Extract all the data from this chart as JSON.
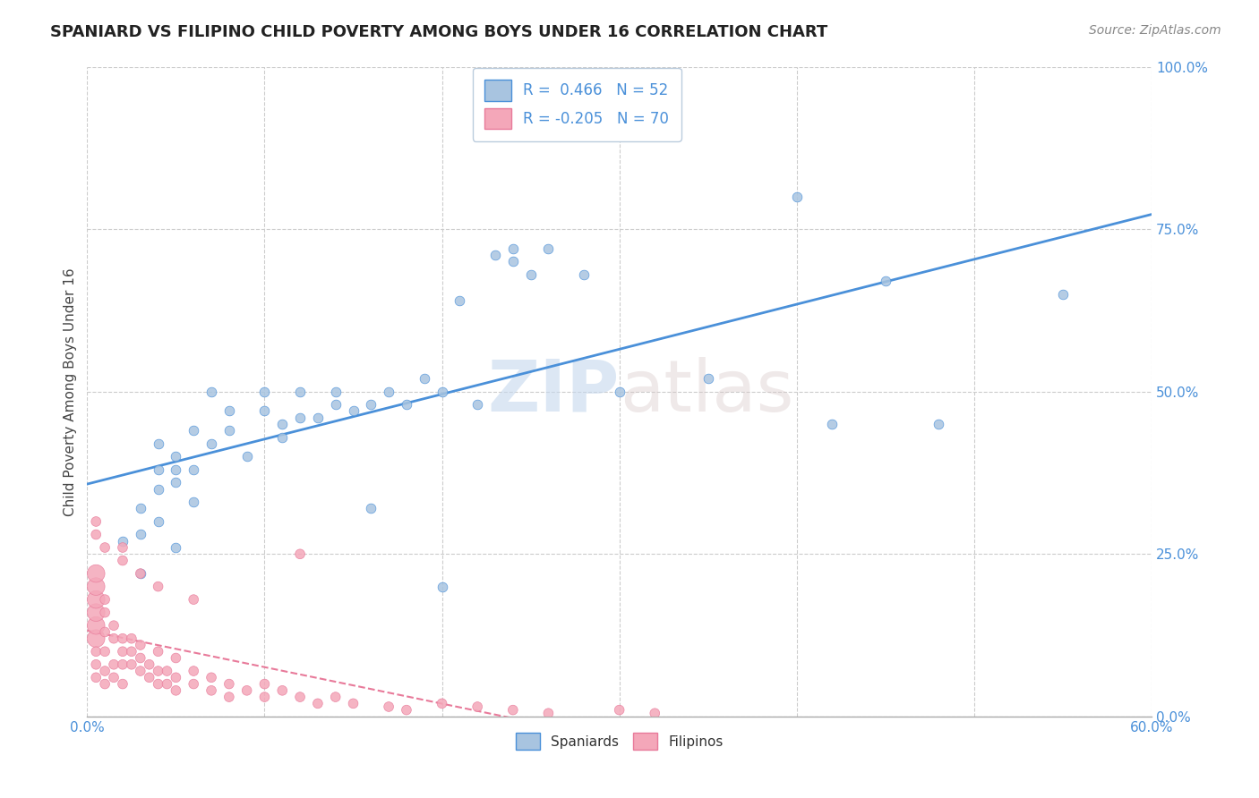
{
  "title": "SPANIARD VS FILIPINO CHILD POVERTY AMONG BOYS UNDER 16 CORRELATION CHART",
  "source": "Source: ZipAtlas.com",
  "ylabel": "Child Poverty Among Boys Under 16",
  "yaxis_labels": [
    "0.0%",
    "25.0%",
    "50.0%",
    "75.0%",
    "100.0%"
  ],
  "yaxis_values": [
    0,
    0.25,
    0.5,
    0.75,
    1.0
  ],
  "xlim": [
    0,
    0.6
  ],
  "ylim": [
    0,
    1.0
  ],
  "legend_r_blue": "0.466",
  "legend_n_blue": "52",
  "legend_r_pink": "-0.205",
  "legend_n_pink": "70",
  "spaniard_color": "#a8c4e0",
  "filipino_color": "#f4a7b9",
  "trend_blue": "#4a90d9",
  "trend_pink": "#e87a9a",
  "watermark_zip": "ZIP",
  "watermark_atlas": "atlas",
  "spaniard_points": [
    [
      0.02,
      0.27
    ],
    [
      0.03,
      0.22
    ],
    [
      0.03,
      0.28
    ],
    [
      0.03,
      0.32
    ],
    [
      0.04,
      0.35
    ],
    [
      0.04,
      0.3
    ],
    [
      0.04,
      0.38
    ],
    [
      0.04,
      0.42
    ],
    [
      0.05,
      0.26
    ],
    [
      0.05,
      0.36
    ],
    [
      0.05,
      0.38
    ],
    [
      0.05,
      0.4
    ],
    [
      0.06,
      0.33
    ],
    [
      0.06,
      0.38
    ],
    [
      0.06,
      0.44
    ],
    [
      0.07,
      0.42
    ],
    [
      0.07,
      0.5
    ],
    [
      0.08,
      0.44
    ],
    [
      0.08,
      0.47
    ],
    [
      0.09,
      0.4
    ],
    [
      0.1,
      0.47
    ],
    [
      0.1,
      0.5
    ],
    [
      0.11,
      0.43
    ],
    [
      0.11,
      0.45
    ],
    [
      0.12,
      0.46
    ],
    [
      0.12,
      0.5
    ],
    [
      0.13,
      0.46
    ],
    [
      0.14,
      0.48
    ],
    [
      0.14,
      0.5
    ],
    [
      0.15,
      0.47
    ],
    [
      0.16,
      0.32
    ],
    [
      0.16,
      0.48
    ],
    [
      0.17,
      0.5
    ],
    [
      0.18,
      0.48
    ],
    [
      0.19,
      0.52
    ],
    [
      0.2,
      0.2
    ],
    [
      0.2,
      0.5
    ],
    [
      0.21,
      0.64
    ],
    [
      0.22,
      0.48
    ],
    [
      0.23,
      0.71
    ],
    [
      0.24,
      0.7
    ],
    [
      0.24,
      0.72
    ],
    [
      0.25,
      0.68
    ],
    [
      0.26,
      0.72
    ],
    [
      0.28,
      0.68
    ],
    [
      0.3,
      0.5
    ],
    [
      0.35,
      0.52
    ],
    [
      0.4,
      0.8
    ],
    [
      0.42,
      0.45
    ],
    [
      0.45,
      0.67
    ],
    [
      0.48,
      0.45
    ],
    [
      0.55,
      0.65
    ]
  ],
  "filipino_points": [
    [
      0.005,
      0.12
    ],
    [
      0.005,
      0.14
    ],
    [
      0.005,
      0.16
    ],
    [
      0.005,
      0.18
    ],
    [
      0.005,
      0.2
    ],
    [
      0.005,
      0.22
    ],
    [
      0.005,
      0.06
    ],
    [
      0.005,
      0.08
    ],
    [
      0.005,
      0.1
    ],
    [
      0.01,
      0.13
    ],
    [
      0.01,
      0.16
    ],
    [
      0.01,
      0.18
    ],
    [
      0.01,
      0.1
    ],
    [
      0.01,
      0.07
    ],
    [
      0.01,
      0.05
    ],
    [
      0.015,
      0.12
    ],
    [
      0.015,
      0.14
    ],
    [
      0.015,
      0.08
    ],
    [
      0.015,
      0.06
    ],
    [
      0.02,
      0.12
    ],
    [
      0.02,
      0.1
    ],
    [
      0.02,
      0.08
    ],
    [
      0.02,
      0.05
    ],
    [
      0.025,
      0.1
    ],
    [
      0.025,
      0.08
    ],
    [
      0.025,
      0.12
    ],
    [
      0.03,
      0.09
    ],
    [
      0.03,
      0.07
    ],
    [
      0.03,
      0.11
    ],
    [
      0.035,
      0.08
    ],
    [
      0.035,
      0.06
    ],
    [
      0.04,
      0.07
    ],
    [
      0.04,
      0.05
    ],
    [
      0.04,
      0.1
    ],
    [
      0.045,
      0.07
    ],
    [
      0.045,
      0.05
    ],
    [
      0.05,
      0.06
    ],
    [
      0.05,
      0.04
    ],
    [
      0.05,
      0.09
    ],
    [
      0.06,
      0.05
    ],
    [
      0.06,
      0.07
    ],
    [
      0.07,
      0.04
    ],
    [
      0.07,
      0.06
    ],
    [
      0.08,
      0.03
    ],
    [
      0.08,
      0.05
    ],
    [
      0.09,
      0.04
    ],
    [
      0.1,
      0.03
    ],
    [
      0.1,
      0.05
    ],
    [
      0.11,
      0.04
    ],
    [
      0.12,
      0.03
    ],
    [
      0.13,
      0.02
    ],
    [
      0.14,
      0.03
    ],
    [
      0.15,
      0.02
    ],
    [
      0.17,
      0.015
    ],
    [
      0.18,
      0.01
    ],
    [
      0.2,
      0.02
    ],
    [
      0.22,
      0.015
    ],
    [
      0.24,
      0.01
    ],
    [
      0.26,
      0.005
    ],
    [
      0.3,
      0.01
    ],
    [
      0.32,
      0.005
    ],
    [
      0.12,
      0.25
    ],
    [
      0.005,
      0.28
    ],
    [
      0.005,
      0.3
    ],
    [
      0.01,
      0.26
    ],
    [
      0.02,
      0.24
    ],
    [
      0.02,
      0.26
    ],
    [
      0.03,
      0.22
    ],
    [
      0.04,
      0.2
    ],
    [
      0.06,
      0.18
    ]
  ],
  "filipino_sizes": [
    200,
    200,
    200,
    200,
    200,
    200,
    60,
    60,
    60,
    60,
    60,
    60,
    60,
    60,
    60,
    60,
    60,
    60,
    60,
    60,
    60,
    60,
    60,
    60,
    60,
    60,
    60,
    60,
    60,
    60,
    60,
    60,
    60,
    60,
    60,
    60,
    60,
    60,
    60,
    60,
    60,
    60,
    60,
    60,
    60,
    60,
    60,
    60,
    60,
    60,
    60,
    60,
    60,
    60,
    60,
    60,
    60,
    60,
    60,
    60,
    60,
    60,
    60,
    60,
    60,
    60,
    60,
    60,
    60,
    60
  ]
}
